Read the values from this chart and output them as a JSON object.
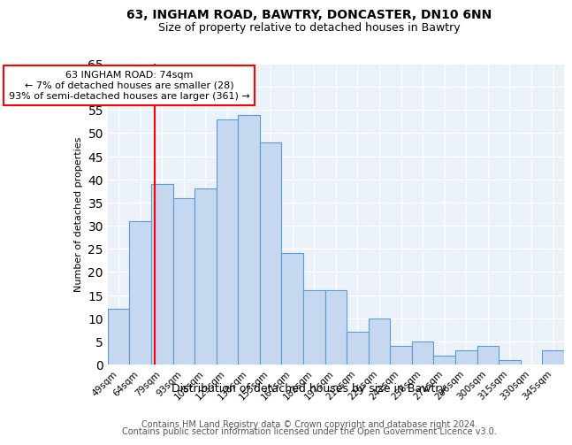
{
  "title1": "63, INGHAM ROAD, BAWTRY, DONCASTER, DN10 6NN",
  "title2": "Size of property relative to detached houses in Bawtry",
  "xlabel": "Distribution of detached houses by size in Bawtry",
  "ylabel": "Number of detached properties",
  "categories": [
    "49sqm",
    "64sqm",
    "79sqm",
    "93sqm",
    "108sqm",
    "123sqm",
    "138sqm",
    "153sqm",
    "167sqm",
    "182sqm",
    "197sqm",
    "212sqm",
    "226sqm",
    "241sqm",
    "256sqm",
    "271sqm",
    "286sqm",
    "300sqm",
    "315sqm",
    "330sqm",
    "345sqm"
  ],
  "values": [
    12,
    31,
    39,
    36,
    38,
    53,
    54,
    48,
    24,
    16,
    16,
    7,
    10,
    4,
    5,
    2,
    3,
    4,
    1,
    0,
    3
  ],
  "bar_color": "#c5d8f0",
  "bar_edge_color": "#5b9bd5",
  "background_color": "#eaf1f8",
  "grid_color": "#ffffff",
  "annotation_line1": "63 INGHAM ROAD: 74sqm",
  "annotation_line2": "← 7% of detached houses are smaller (28)",
  "annotation_line3": "93% of semi-detached houses are larger (361) →",
  "ylim": [
    0,
    65
  ],
  "yticks": [
    0,
    5,
    10,
    15,
    20,
    25,
    30,
    35,
    40,
    45,
    50,
    55,
    60,
    65
  ],
  "footer1": "Contains HM Land Registry data © Crown copyright and database right 2024.",
  "footer2": "Contains public sector information licensed under the Open Government Licence v3.0.",
  "title1_fontsize": 10,
  "title2_fontsize": 9,
  "xlabel_fontsize": 9,
  "ylabel_fontsize": 8,
  "tick_fontsize": 7.5,
  "annotation_fontsize": 8,
  "footer_fontsize": 7
}
